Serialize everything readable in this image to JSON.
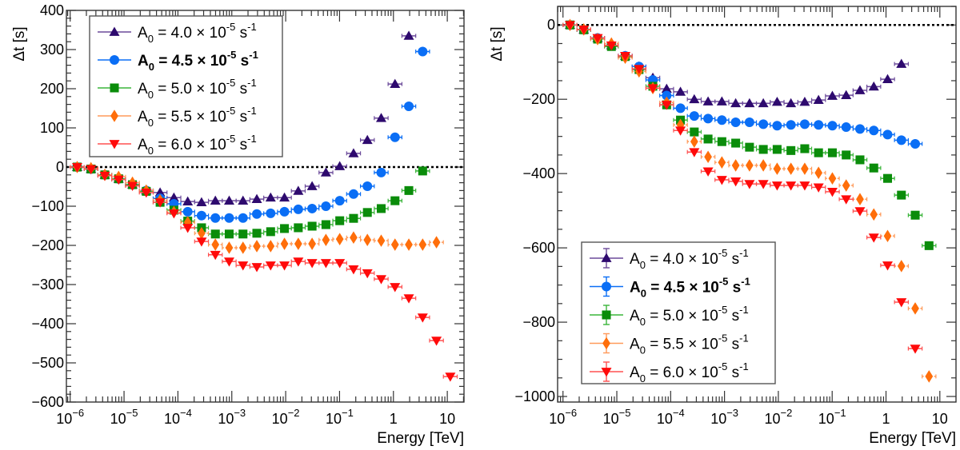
{
  "chart_data": [
    {
      "type": "scatter",
      "panel": "left",
      "title": "",
      "xlabel": "Energy [TeV]",
      "ylabel": "Δt [s]",
      "xscale": "log",
      "xlim_log10": [
        -6.07,
        1.31
      ],
      "ylim": [
        -600,
        400
      ],
      "xticks": [
        {
          "log10": -6,
          "base": "10",
          "exp": "−6"
        },
        {
          "log10": -5,
          "base": "10",
          "exp": "−5"
        },
        {
          "log10": -4,
          "base": "10",
          "exp": "−4"
        },
        {
          "log10": -3,
          "base": "10",
          "exp": "−3"
        },
        {
          "log10": -2,
          "base": "10",
          "exp": "−2"
        },
        {
          "log10": -1,
          "base": "10",
          "exp": "−1"
        },
        {
          "log10": 0,
          "base": "1",
          "exp": ""
        },
        {
          "log10": 1,
          "base": "10",
          "exp": ""
        }
      ],
      "yticks": [
        {
          "value": 400,
          "label": "400"
        },
        {
          "value": 300,
          "label": "300"
        },
        {
          "value": 200,
          "label": "200"
        },
        {
          "value": 100,
          "label": "100"
        },
        {
          "value": 0,
          "label": "0"
        },
        {
          "value": -100,
          "label": "−100"
        },
        {
          "value": -200,
          "label": "−200"
        },
        {
          "value": -300,
          "label": "−300"
        },
        {
          "value": -400,
          "label": "−400"
        },
        {
          "value": -500,
          "label": "−500"
        },
        {
          "value": -600,
          "label": "−600"
        }
      ],
      "ytick_minor_step": 20,
      "reference_line": {
        "y": 0,
        "style": "dotted",
        "color": "#000000"
      },
      "legend": {
        "placement": "top-left",
        "error_bars_in_legend": false
      },
      "x_log10_start": -5.87,
      "x_log10_step": 0.2565,
      "series": [
        {
          "name": "A0 = 4.0 × 10^-5 s^-1",
          "label_value": "4.0",
          "bold": false,
          "marker": "triangle-up",
          "color": "#2e0a6e",
          "line_color": "#6b4a9a",
          "line_style": "solid",
          "values": [
            0,
            -5,
            -20,
            -30,
            -45,
            -60,
            -65,
            -78,
            -88,
            -90,
            -86,
            -86,
            -86,
            -82,
            -78,
            -78,
            -61,
            -49,
            -14,
            2,
            35,
            69,
            125,
            212,
            335
          ]
        },
        {
          "name": "A0 = 4.5 × 10^-5 s^-1",
          "label_value": "4.5",
          "bold": true,
          "marker": "circle",
          "color": "#0a6ef5",
          "line_color": "#0a6ef5",
          "line_style": "solid",
          "values": [
            0,
            -5,
            -20,
            -30,
            -45,
            -60,
            -80,
            -94,
            -114,
            -124,
            -130,
            -130,
            -130,
            -120,
            -118,
            -114,
            -108,
            -106,
            -100,
            -86,
            -69,
            -49,
            -14,
            76,
            155,
            295
          ]
        },
        {
          "name": "A0 = 5.0 × 10^-5 s^-1",
          "label_value": "5.0",
          "bold": false,
          "marker": "square",
          "color": "#0a8c0a",
          "line_color": "#3ab53a",
          "line_style": "solid",
          "values": [
            0,
            -5,
            -20,
            -30,
            -45,
            -62,
            -90,
            -110,
            -138,
            -155,
            -171,
            -171,
            -171,
            -169,
            -165,
            -157,
            -155,
            -151,
            -147,
            -137,
            -131,
            -116,
            -106,
            -86,
            -60,
            -10
          ]
        },
        {
          "name": "A0 = 5.5 × 10^-5 s^-1",
          "label_value": "5.5",
          "bold": false,
          "marker": "diamond",
          "color": "#ff6e0a",
          "line_color": "#ff9a5a",
          "line_style": "dotted",
          "values": [
            0,
            -3,
            -20,
            -25,
            -40,
            -60,
            -85,
            -115,
            -141,
            -169,
            -198,
            -206,
            -206,
            -202,
            -202,
            -196,
            -196,
            -196,
            -186,
            -184,
            -180,
            -186,
            -188,
            -198,
            -198,
            -198,
            -192
          ]
        },
        {
          "name": "A0 = 6.0 × 10^-5 s^-1",
          "label_value": "6.0",
          "bold": false,
          "marker": "triangle-down",
          "color": "#ff0a0a",
          "line_color": "#ff5050",
          "line_style": "solid",
          "values": [
            0,
            -5,
            -22,
            -32,
            -48,
            -65,
            -90,
            -118,
            -155,
            -190,
            -224,
            -241,
            -251,
            -255,
            -251,
            -251,
            -241,
            -245,
            -245,
            -245,
            -261,
            -271,
            -286,
            -306,
            -335,
            -384,
            -443,
            -535
          ]
        }
      ]
    },
    {
      "type": "scatter",
      "panel": "right",
      "title": "",
      "xlabel": "Energy [TeV]",
      "ylabel": "Δt [s]",
      "xscale": "log",
      "xlim_log10": [
        -6.1,
        1.3
      ],
      "ylim": [
        -1015,
        50
      ],
      "xticks": [
        {
          "log10": -6,
          "base": "10",
          "exp": "−6"
        },
        {
          "log10": -5,
          "base": "10",
          "exp": "−5"
        },
        {
          "log10": -4,
          "base": "10",
          "exp": "−4"
        },
        {
          "log10": -3,
          "base": "10",
          "exp": "−3"
        },
        {
          "log10": -2,
          "base": "10",
          "exp": "−2"
        },
        {
          "log10": -1,
          "base": "10",
          "exp": "−1"
        },
        {
          "log10": 0,
          "base": "1",
          "exp": ""
        },
        {
          "log10": 1,
          "base": "10",
          "exp": ""
        }
      ],
      "yticks": [
        {
          "value": 0,
          "label": "0"
        },
        {
          "value": -200,
          "label": "−200"
        },
        {
          "value": -400,
          "label": "−400"
        },
        {
          "value": -600,
          "label": "−600"
        },
        {
          "value": -800,
          "label": "−800"
        },
        {
          "value": -1000,
          "label": "−1000"
        }
      ],
      "ytick_minor_step": 50,
      "reference_line": {
        "y": 0,
        "style": "dotted",
        "color": "#000000"
      },
      "legend": {
        "placement": "bottom-left",
        "error_bars_in_legend": true
      },
      "x_log10_start": -5.87,
      "x_log10_step": 0.2565,
      "series": [
        {
          "name": "A0 = 4.0 × 10^-5 s^-1",
          "label_value": "4.0",
          "bold": false,
          "marker": "triangle-up",
          "color": "#2e0a6e",
          "line_color": "#6b4a9a",
          "line_style": "solid",
          "values": [
            0,
            -13,
            -35,
            -55,
            -83,
            -112,
            -142,
            -172,
            -180,
            -200,
            -206,
            -206,
            -211,
            -211,
            -211,
            -207,
            -211,
            -207,
            -202,
            -191,
            -189,
            -176,
            -166,
            -146,
            -105
          ]
        },
        {
          "name": "A0 = 4.5 × 10^-5 s^-1",
          "label_value": "4.5",
          "bold": true,
          "marker": "circle",
          "color": "#0a6ef5",
          "line_color": "#0a6ef5",
          "line_style": "solid",
          "values": [
            0,
            -13,
            -35,
            -55,
            -83,
            -112,
            -148,
            -190,
            -224,
            -245,
            -252,
            -256,
            -262,
            -262,
            -267,
            -271,
            -269,
            -267,
            -269,
            -271,
            -275,
            -280,
            -284,
            -295,
            -310,
            -320
          ]
        },
        {
          "name": "A0 = 5.0 × 10^-5 s^-1",
          "label_value": "5.0",
          "bold": false,
          "marker": "square",
          "color": "#0a8c0a",
          "line_color": "#3ab53a",
          "line_style": "solid",
          "values": [
            0,
            -13,
            -38,
            -58,
            -85,
            -120,
            -165,
            -215,
            -256,
            -288,
            -307,
            -314,
            -318,
            -329,
            -335,
            -335,
            -338,
            -333,
            -344,
            -344,
            -350,
            -363,
            -385,
            -413,
            -458,
            -512,
            -594
          ]
        },
        {
          "name": "A0 = 5.5 × 10^-5 s^-1",
          "label_value": "5.5",
          "bold": false,
          "marker": "diamond",
          "color": "#ff6e0a",
          "line_color": "#ff9a5a",
          "line_style": "dotted",
          "values": [
            0,
            -12,
            -38,
            -50,
            -88,
            -125,
            -170,
            -209,
            -269,
            -314,
            -355,
            -370,
            -378,
            -378,
            -378,
            -387,
            -387,
            -387,
            -398,
            -413,
            -432,
            -469,
            -510,
            -568,
            -649,
            -763,
            -946
          ]
        },
        {
          "name": "A0 = 6.0 × 10^-5 s^-1",
          "label_value": "6.0",
          "bold": false,
          "marker": "triangle-down",
          "color": "#ff0a0a",
          "line_color": "#ff5050",
          "line_style": "solid",
          "values": [
            0,
            -12,
            -35,
            -55,
            -83,
            -118,
            -170,
            -215,
            -284,
            -342,
            -394,
            -417,
            -421,
            -428,
            -428,
            -432,
            -432,
            -432,
            -437,
            -449,
            -469,
            -501,
            -572,
            -647,
            -746,
            -871
          ]
        }
      ]
    }
  ],
  "legend_text": {
    "prefix": "A",
    "subscript": "0",
    "equals": " = ",
    "times": " × 10",
    "exponent": "-5",
    "unit": " s",
    "unit_exponent": "-1"
  }
}
